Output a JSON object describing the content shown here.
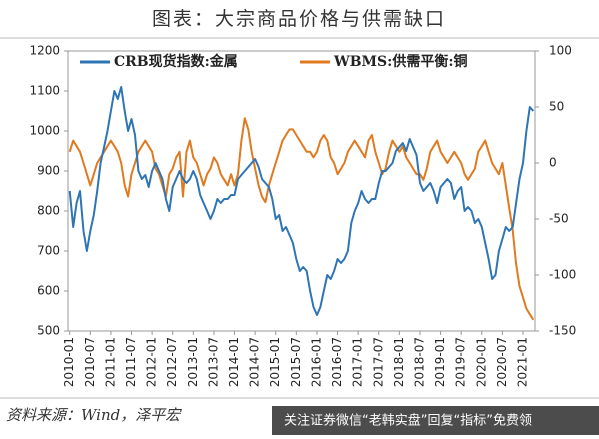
{
  "chart_data": {
    "type": "line",
    "title": "图表：大宗商品价格与供需缺口",
    "source": "资料来源：Wind，泽平宏",
    "watermark": "关注证券微信“老韩实盘”回复“指标”免费领",
    "x": [
      "2010-01",
      "2010-02",
      "2010-03",
      "2010-04",
      "2010-05",
      "2010-06",
      "2010-07",
      "2010-08",
      "2010-09",
      "2010-10",
      "2010-11",
      "2010-12",
      "2011-01",
      "2011-02",
      "2011-03",
      "2011-04",
      "2011-05",
      "2011-06",
      "2011-07",
      "2011-08",
      "2011-09",
      "2011-10",
      "2011-11",
      "2011-12",
      "2012-01",
      "2012-02",
      "2012-03",
      "2012-04",
      "2012-05",
      "2012-06",
      "2012-07",
      "2012-08",
      "2012-09",
      "2012-10",
      "2012-11",
      "2012-12",
      "2013-01",
      "2013-02",
      "2013-03",
      "2013-04",
      "2013-05",
      "2013-06",
      "2013-07",
      "2013-08",
      "2013-09",
      "2013-10",
      "2013-11",
      "2013-12",
      "2014-01",
      "2014-02",
      "2014-03",
      "2014-04",
      "2014-05",
      "2014-06",
      "2014-07",
      "2014-08",
      "2014-09",
      "2014-10",
      "2014-11",
      "2014-12",
      "2015-01",
      "2015-02",
      "2015-03",
      "2015-04",
      "2015-05",
      "2015-06",
      "2015-07",
      "2015-08",
      "2015-09",
      "2015-10",
      "2015-11",
      "2015-12",
      "2016-01",
      "2016-02",
      "2016-03",
      "2016-04",
      "2016-05",
      "2016-06",
      "2016-07",
      "2016-08",
      "2016-09",
      "2016-10",
      "2016-11",
      "2016-12",
      "2017-01",
      "2017-02",
      "2017-03",
      "2017-04",
      "2017-05",
      "2017-06",
      "2017-07",
      "2017-08",
      "2017-09",
      "2017-10",
      "2017-11",
      "2017-12",
      "2018-01",
      "2018-02",
      "2018-03",
      "2018-04",
      "2018-05",
      "2018-06",
      "2018-07",
      "2018-08",
      "2018-09",
      "2018-10",
      "2018-11",
      "2018-12",
      "2019-01",
      "2019-02",
      "2019-03",
      "2019-04",
      "2019-05",
      "2019-06",
      "2019-07",
      "2019-08",
      "2019-09",
      "2019-10",
      "2019-11",
      "2019-12",
      "2020-01",
      "2020-02",
      "2020-03",
      "2020-04",
      "2020-05",
      "2020-06",
      "2020-07",
      "2020-08",
      "2020-09",
      "2020-10",
      "2020-11",
      "2020-12",
      "2021-01",
      "2021-02",
      "2021-03",
      "2021-04"
    ],
    "xticks": [
      "2010-01",
      "2010-07",
      "2011-01",
      "2011-07",
      "2012-01",
      "2012-07",
      "2013-01",
      "2013-07",
      "2014-01",
      "2014-07",
      "2015-01",
      "2015-07",
      "2016-01",
      "2016-07",
      "2017-01",
      "2017-07",
      "2018-01",
      "2018-07",
      "2019-01",
      "2019-07",
      "2020-01",
      "2020-07",
      "2021-01"
    ],
    "ylim": [
      500,
      1200
    ],
    "yticks": [
      500,
      600,
      700,
      800,
      900,
      1000,
      1100,
      1200
    ],
    "y2lim": [
      -150,
      100
    ],
    "y2ticks": [
      -150,
      -100,
      -50,
      0,
      50,
      100
    ],
    "series": [
      {
        "name": "CRB现货指数:金属",
        "color": "#2e75b6",
        "values": [
          850,
          760,
          820,
          850,
          750,
          700,
          750,
          790,
          850,
          920,
          960,
          1000,
          1050,
          1100,
          1080,
          1110,
          1050,
          1000,
          1030,
          990,
          900,
          880,
          890,
          860,
          900,
          920,
          900,
          880,
          830,
          800,
          860,
          880,
          900,
          880,
          870,
          880,
          900,
          880,
          840,
          820,
          800,
          780,
          800,
          830,
          820,
          830,
          830,
          840,
          840,
          880,
          890,
          900,
          910,
          920,
          930,
          910,
          880,
          870,
          860,
          830,
          780,
          790,
          750,
          760,
          740,
          720,
          680,
          650,
          660,
          650,
          600,
          560,
          540,
          560,
          600,
          640,
          630,
          650,
          680,
          670,
          680,
          700,
          770,
          800,
          820,
          850,
          830,
          820,
          830,
          830,
          870,
          900,
          900,
          910,
          920,
          950,
          960,
          970,
          950,
          980,
          960,
          940,
          870,
          850,
          860,
          870,
          850,
          820,
          860,
          870,
          880,
          870,
          830,
          850,
          860,
          800,
          810,
          800,
          770,
          780,
          760,
          720,
          680,
          630,
          640,
          700,
          730,
          760,
          750,
          760,
          820,
          880,
          920,
          1000,
          1060,
          1050
        ]
      },
      {
        "name": "WBMS:供需平衡:铜",
        "color": "#e07a1f",
        "axis": "y2",
        "values": [
          10,
          20,
          15,
          10,
          0,
          -10,
          -20,
          -10,
          0,
          5,
          10,
          15,
          20,
          15,
          10,
          0,
          -20,
          -30,
          -10,
          0,
          10,
          15,
          20,
          15,
          10,
          -5,
          -10,
          -20,
          -30,
          -10,
          -5,
          5,
          10,
          -30,
          10,
          20,
          5,
          0,
          -10,
          -20,
          -10,
          -5,
          5,
          0,
          -10,
          -15,
          -20,
          -10,
          -20,
          -10,
          20,
          40,
          30,
          10,
          -5,
          -20,
          -30,
          -35,
          -20,
          -10,
          0,
          10,
          20,
          25,
          30,
          30,
          25,
          20,
          15,
          10,
          10,
          5,
          10,
          20,
          25,
          20,
          5,
          0,
          -10,
          -5,
          0,
          10,
          15,
          20,
          15,
          10,
          5,
          20,
          25,
          10,
          0,
          -10,
          -5,
          10,
          20,
          15,
          10,
          15,
          5,
          0,
          -5,
          -10,
          -10,
          -15,
          -5,
          10,
          15,
          20,
          10,
          5,
          0,
          5,
          10,
          5,
          0,
          -10,
          -15,
          -10,
          -5,
          10,
          15,
          20,
          10,
          0,
          -5,
          -10,
          0,
          -20,
          -40,
          -60,
          -90,
          -110,
          -120,
          -130,
          -135,
          -140
        ]
      }
    ]
  }
}
